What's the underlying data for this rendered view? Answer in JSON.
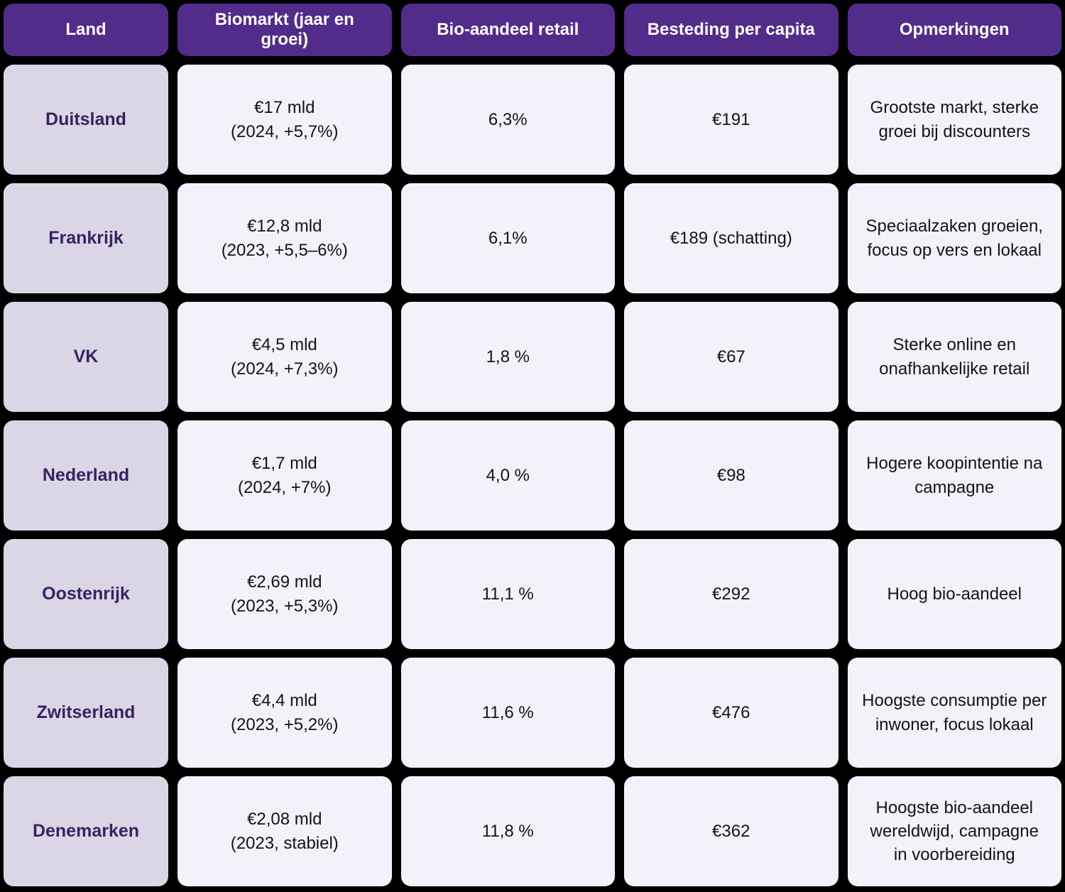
{
  "colors": {
    "page_bg": "#000000",
    "header_bg": "#522C8A",
    "header_text": "#FFFFFF",
    "land_bg": "#DBD6E5",
    "land_text": "#362363",
    "cell_bg": "#F4F1FA",
    "cell_text": "#141414"
  },
  "table": {
    "headers": [
      "Land",
      "Biomarkt (jaar en groei)",
      "Bio-aandeel retail",
      "Besteding per capita",
      "Opmerkingen"
    ],
    "rows": [
      {
        "land": "Duitsland",
        "biomarkt": "€17 mld\n(2024, +5,7%)",
        "bio_aandeel": "6,3%",
        "besteding": "€191",
        "opmerkingen": "Grootste markt, sterke groei bij discounters"
      },
      {
        "land": "Frankrijk",
        "biomarkt": "€12,8 mld\n(2023, +5,5–6%)",
        "bio_aandeel": "6,1%",
        "besteding": "€189 (schatting)",
        "opmerkingen": "Speciaalzaken groeien, focus op vers en lokaal"
      },
      {
        "land": "VK",
        "biomarkt": "€4,5 mld\n(2024, +7,3%)",
        "bio_aandeel": "1,8 %",
        "besteding": "€67",
        "opmerkingen": "Sterke online en onafhankelijke retail"
      },
      {
        "land": "Nederland",
        "biomarkt": "€1,7 mld\n(2024, +7%)",
        "bio_aandeel": "4,0 %",
        "besteding": "€98",
        "opmerkingen": "Hogere koopintentie na campagne"
      },
      {
        "land": "Oostenrijk",
        "biomarkt": "€2,69 mld\n(2023, +5,3%)",
        "bio_aandeel": "11,1 %",
        "besteding": "€292",
        "opmerkingen": "Hoog bio-aandeel"
      },
      {
        "land": "Zwitserland",
        "biomarkt": "€4,4 mld\n(2023, +5,2%)",
        "bio_aandeel": "11,6 %",
        "besteding": "€476",
        "opmerkingen": "Hoogste consumptie per inwoner, focus lokaal"
      },
      {
        "land": "Denemarken",
        "biomarkt": "€2,08 mld\n(2023, stabiel)",
        "bio_aandeel": "11,8 %",
        "besteding": "€362",
        "opmerkingen": "Hoogste bio-aandeel wereldwijd, campagne in voorbereiding"
      }
    ]
  },
  "chart_data": {
    "type": "table",
    "title": "Biomarkt per land",
    "columns": [
      "Land",
      "Biomarkt (jaar en groei)",
      "Bio-aandeel retail",
      "Besteding per capita",
      "Opmerkingen"
    ],
    "rows": [
      [
        "Duitsland",
        "€17 mld (2024, +5,7%)",
        "6,3%",
        "€191",
        "Grootste markt, sterke groei bij discounters"
      ],
      [
        "Frankrijk",
        "€12,8 mld (2023, +5,5–6%)",
        "6,1%",
        "€189 (schatting)",
        "Speciaalzaken groeien, focus op vers en lokaal"
      ],
      [
        "VK",
        "€4,5 mld (2024, +7,3%)",
        "1,8 %",
        "€67",
        "Sterke online en onafhankelijke retail"
      ],
      [
        "Nederland",
        "€1,7 mld (2024, +7%)",
        "4,0 %",
        "€98",
        "Hogere koopintentie na campagne"
      ],
      [
        "Oostenrijk",
        "€2,69 mld (2023, +5,3%)",
        "11,1 %",
        "€292",
        "Hoog bio-aandeel"
      ],
      [
        "Zwitserland",
        "€4,4 mld (2023, +5,2%)",
        "11,6 %",
        "€476",
        "Hoogste consumptie per inwoner, focus lokaal"
      ],
      [
        "Denemarken",
        "€2,08 mld (2023, stabiel)",
        "11,8 %",
        "€362",
        "Hoogste bio-aandeel wereldwijd, campagne in voorbereiding"
      ]
    ]
  }
}
